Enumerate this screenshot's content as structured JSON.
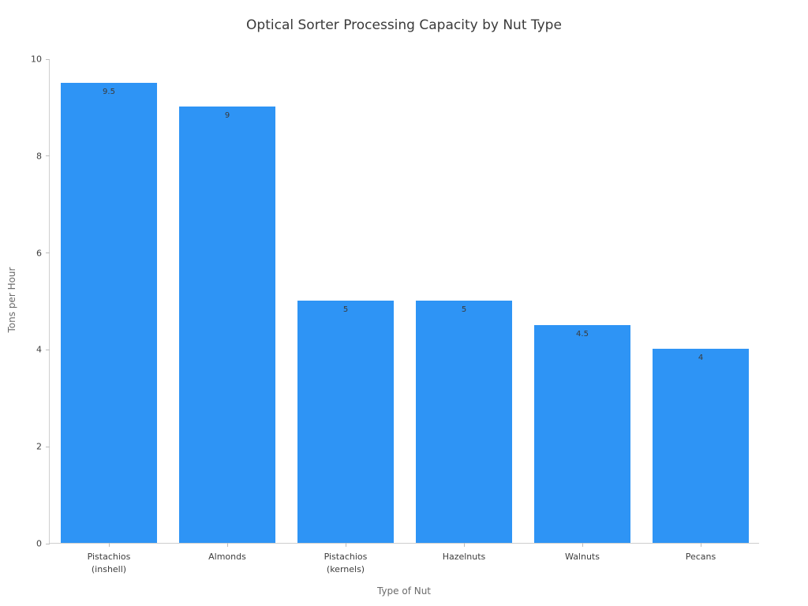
{
  "chart_data": {
    "type": "bar",
    "title": "Optical Sorter Processing Capacity by Nut Type",
    "xlabel": "Type of Nut",
    "ylabel": "Tons per Hour",
    "categories": [
      "Pistachios\n(inshell)",
      "Almonds",
      "Pistachios\n(kernels)",
      "Hazelnuts",
      "Walnuts",
      "Pecans"
    ],
    "values": [
      9.5,
      9,
      5,
      5,
      4.5,
      4
    ],
    "value_labels": [
      "9.5",
      "9",
      "5",
      "5",
      "4.5",
      "4"
    ],
    "ylim": [
      0,
      10
    ],
    "yticks": [
      0,
      2,
      4,
      6,
      8,
      10
    ],
    "grid": false,
    "legend": "none",
    "colors": {
      "bar": "#2e94f5",
      "axis_line": "#cfcfcf",
      "tick_label": "#3d3d3d",
      "axis_title": "#6b6b6b",
      "title": "#3a3a3a",
      "value_label": "#3a3a3a"
    }
  }
}
